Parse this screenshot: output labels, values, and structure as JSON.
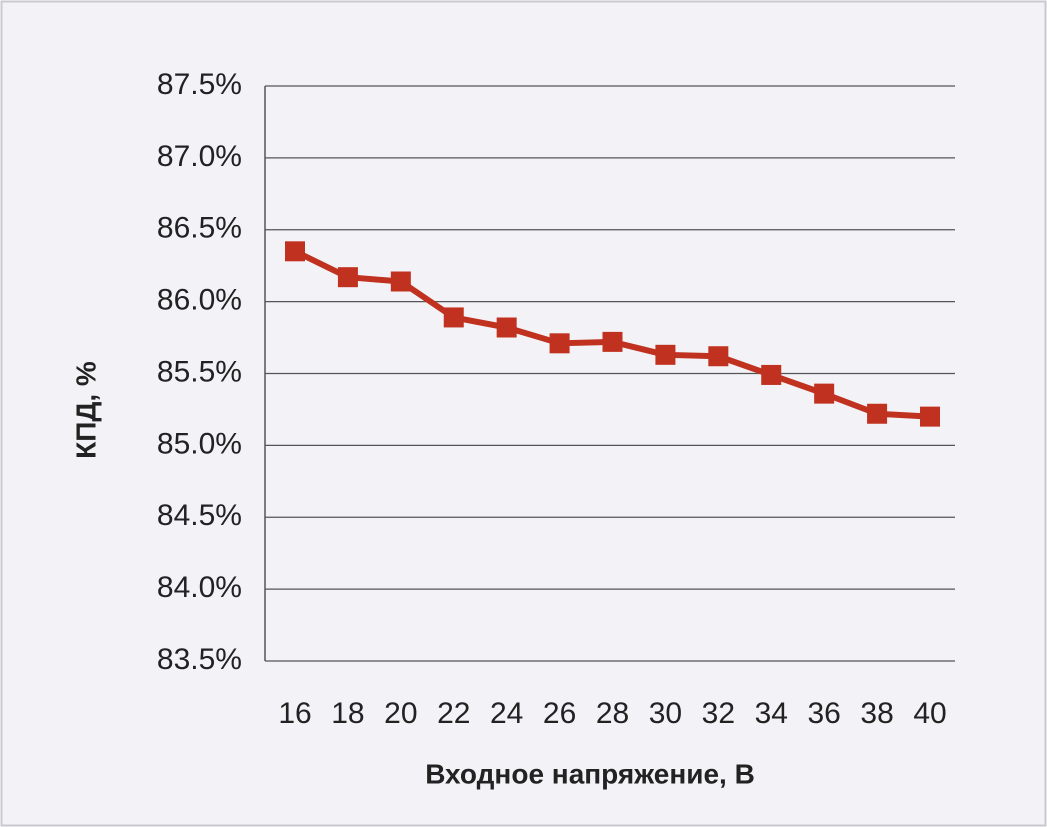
{
  "chart_data": {
    "type": "line",
    "x_label": "Входное напряжение, В",
    "y_label": "КПД, %",
    "categories": [
      "16",
      "18",
      "20",
      "22",
      "24",
      "26",
      "28",
      "30",
      "32",
      "34",
      "36",
      "38",
      "40"
    ],
    "values": [
      86.35,
      86.17,
      86.14,
      85.89,
      85.82,
      85.71,
      85.72,
      85.63,
      85.62,
      85.49,
      85.36,
      85.22,
      85.2
    ],
    "color": "#c0311f",
    "ylim": [
      83.5,
      87.5
    ],
    "yticks": [
      {
        "value": 83.5,
        "label": "83.5%"
      },
      {
        "value": 84.0,
        "label": "84.0%"
      },
      {
        "value": 84.5,
        "label": "84.5%"
      },
      {
        "value": 85.0,
        "label": "85.0%"
      },
      {
        "value": 85.5,
        "label": "85.5%"
      },
      {
        "value": 86.0,
        "label": "86.0%"
      },
      {
        "value": 86.5,
        "label": "86.5%"
      },
      {
        "value": 87.0,
        "label": "87.0%"
      },
      {
        "value": 87.5,
        "label": "87.5%"
      }
    ],
    "grid": true
  }
}
